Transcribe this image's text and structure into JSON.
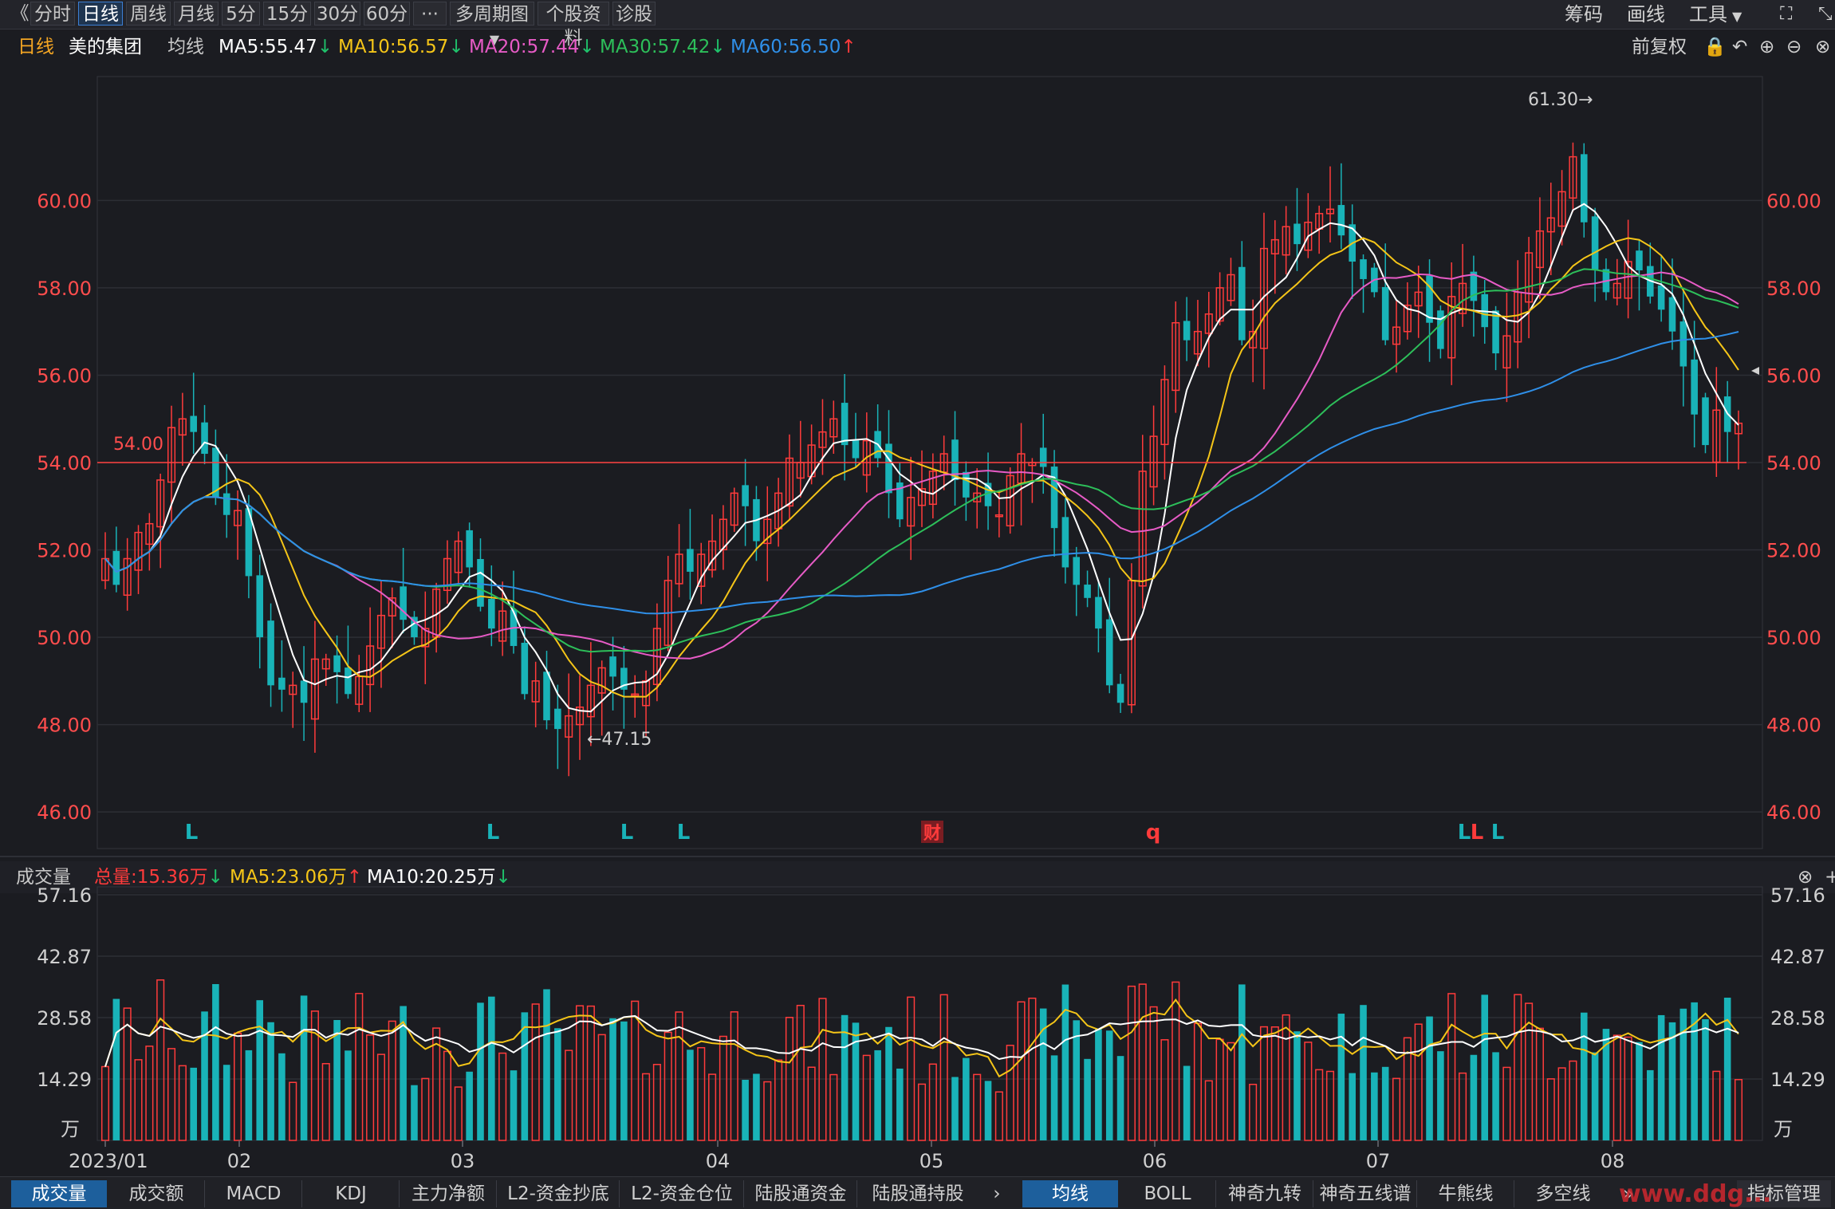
{
  "toolbar": {
    "back_icon": "《",
    "tabs": [
      "分时",
      "日线",
      "周线",
      "月线",
      "5分",
      "15分",
      "30分",
      "60分",
      "···",
      "多周期图",
      "个股资料",
      "诊股"
    ],
    "active_tab": "日线",
    "right": [
      "筹码",
      "画线",
      "工具"
    ]
  },
  "legend": {
    "period": "日线",
    "stock": "美的集团",
    "type": "均线",
    "ma5": "MA5:55.47",
    "ma10": "MA10:56.57",
    "ma20": "MA20:57.44",
    "ma30": "MA30:57.42",
    "ma60": "MA60:56.50",
    "ma5_dir": "↓",
    "ma10_dir": "↓",
    "ma20_dir": "↓",
    "ma30_dir": "↓",
    "ma60_dir": "↑",
    "fq": "前复权"
  },
  "volume_legend": {
    "title": "成交量",
    "total": "总量:15.36万",
    "total_dir": "↓",
    "ma5": "MA5:23.06万",
    "ma5_dir": "↑",
    "ma10": "MA10:20.25万",
    "ma10_dir": "↓"
  },
  "bottom_tabs_left": [
    "成交量",
    "成交额",
    "MACD",
    "KDJ",
    "主力净额",
    "L2-资金抄底",
    "L2-资金仓位",
    "陆股通资金",
    "陆股通持股"
  ],
  "bottom_tabs_right": [
    "均线",
    "BOLL",
    "神奇九转",
    "神奇五线谱",
    "牛熊线",
    "多空线"
  ],
  "bottom_more": "»",
  "bottom_manage": "指标管理",
  "watermark": "www.ddg...",
  "colors": {
    "up": "#ff3b3b",
    "down": "#19b3b8",
    "ma5": "#ffffff",
    "ma10": "#f5c518",
    "ma20": "#e75bc6",
    "ma30": "#2dbf5a",
    "ma60": "#2f8fe8"
  },
  "chart_data": {
    "type": "candlestick",
    "price_axis": {
      "ticks": [
        "60.00",
        "58.00",
        "56.00",
        "54.00",
        "52.00",
        "50.00",
        "48.00",
        "46.00"
      ],
      "ylim": [
        45.2,
        62.8
      ]
    },
    "x_labels": [
      "2023/01",
      "02",
      "03",
      "04",
      "05",
      "06",
      "07",
      "08"
    ],
    "annotations": {
      "high": "61.30→",
      "low": "←47.15",
      "hline_label": "54.00",
      "hline_value": 54.0,
      "signal_marks": [
        "L",
        "L",
        "L",
        "L",
        "财",
        "q",
        "L",
        "L",
        "L"
      ]
    },
    "volume_axis": {
      "ticks": [
        "57.16",
        "42.87",
        "28.58",
        "14.29"
      ],
      "unit": "万",
      "ylim": [
        0,
        57.16
      ]
    },
    "close": [
      51.8,
      51.2,
      51.8,
      52.4,
      52.6,
      53.6,
      54.8,
      55.0,
      54.7,
      54.2,
      53.2,
      52.8,
      52.9,
      51.4,
      50.0,
      48.9,
      48.8,
      48.9,
      48.5,
      49.5,
      49.5,
      49.2,
      48.7,
      49.1,
      49.8,
      50.5,
      50.9,
      50.4,
      50.0,
      50.2,
      51.1,
      51.8,
      52.2,
      51.6,
      50.7,
      50.2,
      50.6,
      49.8,
      48.7,
      49.0,
      48.1,
      47.9,
      48.2,
      48.4,
      48.9,
      49.3,
      49.1,
      48.8,
      48.7,
      49.0,
      50.2,
      51.3,
      51.9,
      51.5,
      51.9,
      52.2,
      52.7,
      53.3,
      53.0,
      52.2,
      52.7,
      53.3,
      54.1,
      54.0,
      54.4,
      54.7,
      55.0,
      54.4,
      54.1,
      54.5,
      54.1,
      53.3,
      52.7,
      53.2,
      53.4,
      53.8,
      54.2,
      53.6,
      53.2,
      53.3,
      53.0,
      52.8,
      53.7,
      54.2,
      54.0,
      53.9,
      52.5,
      51.6,
      51.2,
      50.9,
      50.2,
      48.9,
      48.5,
      51.3,
      53.8,
      54.6,
      55.9,
      57.2,
      56.8,
      57.0,
      57.4,
      58.0,
      58.3,
      56.8,
      57.0,
      58.9,
      59.1,
      59.4,
      59.0,
      59.5,
      59.7,
      59.8,
      59.2,
      58.6,
      58.2,
      57.9,
      56.8,
      57.1,
      57.6,
      57.9,
      57.2,
      56.6,
      57.8,
      58.1,
      57.7,
      57.1,
      56.5,
      56.9,
      57.9,
      58.8,
      59.3,
      59.6,
      60.2,
      61.0,
      59.5,
      58.4,
      57.9,
      58.1,
      58.6,
      58.4,
      57.8,
      57.5,
      57.0,
      56.2,
      55.1,
      54.4,
      55.2,
      54.7,
      54.9
    ]
  }
}
